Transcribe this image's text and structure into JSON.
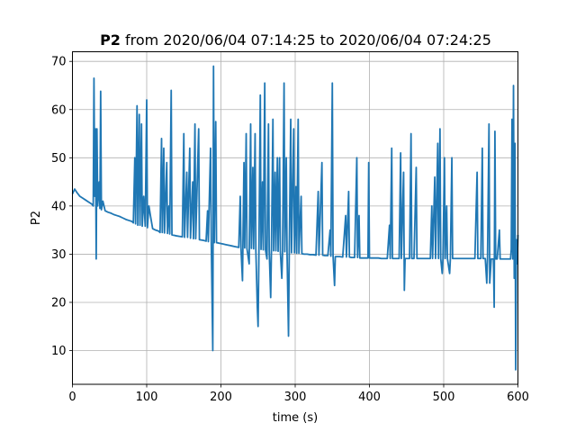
{
  "chart_data": {
    "type": "line",
    "title": {
      "variable": "P2",
      "rest": " from 2020/06/04 07:14:25 to 2020/06/04 07:24:25"
    },
    "xlabel": "time (s)",
    "ylabel": "P2",
    "xlim": [
      0,
      600
    ],
    "ylim": [
      3,
      72
    ],
    "x_ticks": [
      0,
      100,
      200,
      300,
      400,
      500,
      600
    ],
    "y_ticks": [
      10,
      20,
      30,
      40,
      50,
      60,
      70
    ],
    "grid": true,
    "series": [
      {
        "color": "#1f77b4",
        "points": [
          [
            0,
            42.5
          ],
          [
            3,
            43.5
          ],
          [
            6,
            42.8
          ],
          [
            10,
            42.0
          ],
          [
            14,
            41.6
          ],
          [
            18,
            41.2
          ],
          [
            22,
            40.8
          ],
          [
            26,
            40.4
          ],
          [
            28,
            40.0
          ],
          [
            29,
            66.5
          ],
          [
            30,
            42.0
          ],
          [
            31,
            56.0
          ],
          [
            32,
            29.0
          ],
          [
            33,
            56.0
          ],
          [
            34,
            40.0
          ],
          [
            36,
            45.0
          ],
          [
            37,
            39.5
          ],
          [
            38,
            63.8
          ],
          [
            39,
            39.2
          ],
          [
            41,
            41.0
          ],
          [
            44,
            39.0
          ],
          [
            48,
            38.7
          ],
          [
            52,
            38.5
          ],
          [
            56,
            38.2
          ],
          [
            60,
            38.0
          ],
          [
            64,
            37.8
          ],
          [
            68,
            37.5
          ],
          [
            72,
            37.2
          ],
          [
            76,
            37.0
          ],
          [
            80,
            36.8
          ],
          [
            82,
            36.5
          ],
          [
            84,
            50.0
          ],
          [
            85,
            36.3
          ],
          [
            87,
            60.8
          ],
          [
            88,
            36.0
          ],
          [
            90,
            59.0
          ],
          [
            91,
            36.0
          ],
          [
            93,
            57.0
          ],
          [
            94,
            35.8
          ],
          [
            96,
            42.0
          ],
          [
            98,
            35.8
          ],
          [
            100,
            62.0
          ],
          [
            101,
            35.5
          ],
          [
            103,
            40.0
          ],
          [
            105,
            38.0
          ],
          [
            108,
            35.3
          ],
          [
            112,
            35.0
          ],
          [
            116,
            34.8
          ],
          [
            118,
            34.5
          ],
          [
            120,
            54.0
          ],
          [
            121,
            34.5
          ],
          [
            123,
            52.0
          ],
          [
            124,
            34.4
          ],
          [
            127,
            49.0
          ],
          [
            128,
            34.3
          ],
          [
            130,
            40.0
          ],
          [
            131,
            34.2
          ],
          [
            133,
            64.0
          ],
          [
            134,
            34.0
          ],
          [
            137,
            33.9
          ],
          [
            140,
            33.8
          ],
          [
            144,
            33.7
          ],
          [
            148,
            33.6
          ],
          [
            150,
            55.0
          ],
          [
            151,
            33.5
          ],
          [
            154,
            47.0
          ],
          [
            155,
            33.5
          ],
          [
            158,
            52.0
          ],
          [
            159,
            33.3
          ],
          [
            162,
            45.0
          ],
          [
            163,
            33.2
          ],
          [
            165,
            57.0
          ],
          [
            166,
            33.2
          ],
          [
            170,
            56.0
          ],
          [
            171,
            33.0
          ],
          [
            175,
            32.9
          ],
          [
            178,
            32.8
          ],
          [
            180,
            32.7
          ],
          [
            182,
            39.0
          ],
          [
            183,
            32.6
          ],
          [
            186,
            52.0
          ],
          [
            187,
            32.5
          ],
          [
            189,
            10.0
          ],
          [
            190,
            69.0
          ],
          [
            191,
            32.4
          ],
          [
            193,
            57.5
          ],
          [
            194,
            32.4
          ],
          [
            197,
            32.3
          ],
          [
            200,
            32.2
          ],
          [
            203,
            32.1
          ],
          [
            206,
            32.0
          ],
          [
            209,
            31.9
          ],
          [
            212,
            31.8
          ],
          [
            215,
            31.7
          ],
          [
            218,
            31.6
          ],
          [
            221,
            31.5
          ],
          [
            224,
            31.4
          ],
          [
            226,
            42.0
          ],
          [
            227,
            31.3
          ],
          [
            229,
            24.5
          ],
          [
            231,
            49.0
          ],
          [
            232,
            31.3
          ],
          [
            234,
            55.0
          ],
          [
            235,
            31.2
          ],
          [
            238,
            28.0
          ],
          [
            240,
            57.0
          ],
          [
            241,
            31.2
          ],
          [
            243,
            48.0
          ],
          [
            244,
            31.1
          ],
          [
            246,
            55.0
          ],
          [
            247,
            31.0
          ],
          [
            249,
            19.0
          ],
          [
            250,
            15.0
          ],
          [
            251,
            28.0
          ],
          [
            253,
            63.0
          ],
          [
            254,
            31.0
          ],
          [
            256,
            45.0
          ],
          [
            257,
            30.9
          ],
          [
            259,
            65.5
          ],
          [
            260,
            30.9
          ],
          [
            262,
            29.0
          ],
          [
            264,
            57.0
          ],
          [
            265,
            30.8
          ],
          [
            267,
            21.0
          ],
          [
            268,
            30.8
          ],
          [
            270,
            58.0
          ],
          [
            271,
            30.7
          ],
          [
            273,
            47.0
          ],
          [
            274,
            30.7
          ],
          [
            276,
            50.0
          ],
          [
            277,
            30.6
          ],
          [
            279,
            50.0
          ],
          [
            280,
            30.6
          ],
          [
            282,
            25.0
          ],
          [
            283,
            30.5
          ],
          [
            285,
            65.5
          ],
          [
            286,
            30.5
          ],
          [
            288,
            50.0
          ],
          [
            289,
            30.4
          ],
          [
            291,
            13.0
          ],
          [
            292,
            30.4
          ],
          [
            294,
            58.0
          ],
          [
            295,
            30.3
          ],
          [
            298,
            56.0
          ],
          [
            299,
            30.3
          ],
          [
            301,
            44.0
          ],
          [
            302,
            30.2
          ],
          [
            304,
            58.0
          ],
          [
            305,
            30.2
          ],
          [
            308,
            42.0
          ],
          [
            309,
            30.1
          ],
          [
            312,
            30.0
          ],
          [
            316,
            30.0
          ],
          [
            320,
            29.9
          ],
          [
            324,
            29.9
          ],
          [
            328,
            29.8
          ],
          [
            331,
            43.0
          ],
          [
            332,
            29.8
          ],
          [
            336,
            49.0
          ],
          [
            337,
            29.8
          ],
          [
            340,
            29.7
          ],
          [
            344,
            29.7
          ],
          [
            347,
            35.0
          ],
          [
            348,
            29.6
          ],
          [
            350,
            65.5
          ],
          [
            351,
            29.6
          ],
          [
            353,
            23.5
          ],
          [
            354,
            29.5
          ],
          [
            357,
            29.5
          ],
          [
            360,
            29.5
          ],
          [
            364,
            29.4
          ],
          [
            368,
            38.0
          ],
          [
            369,
            29.4
          ],
          [
            372,
            43.0
          ],
          [
            373,
            29.4
          ],
          [
            376,
            29.3
          ],
          [
            380,
            29.3
          ],
          [
            383,
            50.0
          ],
          [
            384,
            29.3
          ],
          [
            386,
            38.0
          ],
          [
            387,
            29.2
          ],
          [
            391,
            29.2
          ],
          [
            395,
            29.2
          ],
          [
            398,
            29.2
          ],
          [
            399,
            49.0
          ],
          [
            400,
            29.2
          ],
          [
            404,
            29.2
          ],
          [
            408,
            29.2
          ],
          [
            412,
            29.2
          ],
          [
            416,
            29.1
          ],
          [
            420,
            29.1
          ],
          [
            424,
            29.1
          ],
          [
            427,
            36.0
          ],
          [
            428,
            29.1
          ],
          [
            430,
            52.0
          ],
          [
            431,
            29.1
          ],
          [
            434,
            29.1
          ],
          [
            437,
            29.1
          ],
          [
            440,
            29.1
          ],
          [
            442,
            51.0
          ],
          [
            443,
            29.1
          ],
          [
            446,
            47.0
          ],
          [
            447,
            22.5
          ],
          [
            448,
            29.1
          ],
          [
            451,
            29.1
          ],
          [
            454,
            29.1
          ],
          [
            456,
            55.0
          ],
          [
            457,
            29.1
          ],
          [
            460,
            29.1
          ],
          [
            463,
            48.0
          ],
          [
            464,
            29.1
          ],
          [
            467,
            29.1
          ],
          [
            470,
            29.1
          ],
          [
            474,
            29.1
          ],
          [
            478,
            29.1
          ],
          [
            482,
            29.1
          ],
          [
            484,
            40.0
          ],
          [
            485,
            29.1
          ],
          [
            488,
            46.0
          ],
          [
            489,
            29.1
          ],
          [
            492,
            53.0
          ],
          [
            493,
            29.1
          ],
          [
            495,
            56.0
          ],
          [
            496,
            29.1
          ],
          [
            498,
            26.0
          ],
          [
            499,
            29.1
          ],
          [
            501,
            50.0
          ],
          [
            502,
            29.1
          ],
          [
            504,
            40.0
          ],
          [
            505,
            29.1
          ],
          [
            508,
            26.0
          ],
          [
            509,
            29.1
          ],
          [
            511,
            50.0
          ],
          [
            512,
            29.1
          ],
          [
            515,
            29.1
          ],
          [
            518,
            29.1
          ],
          [
            522,
            29.1
          ],
          [
            526,
            29.1
          ],
          [
            530,
            29.1
          ],
          [
            534,
            29.1
          ],
          [
            538,
            29.1
          ],
          [
            542,
            29.1
          ],
          [
            545,
            47.0
          ],
          [
            546,
            29.1
          ],
          [
            548,
            29.1
          ],
          [
            550,
            29.1
          ],
          [
            552,
            52.0
          ],
          [
            553,
            29.1
          ],
          [
            556,
            29.1
          ],
          [
            558,
            24.0
          ],
          [
            559,
            29.1
          ],
          [
            561,
            57.0
          ],
          [
            562,
            24.0
          ],
          [
            564,
            29.0
          ],
          [
            567,
            29.0
          ],
          [
            568,
            19.0
          ],
          [
            569,
            55.5
          ],
          [
            570,
            29.0
          ],
          [
            572,
            29.0
          ],
          [
            575,
            35.0
          ],
          [
            576,
            29.0
          ],
          [
            578,
            29.0
          ],
          [
            581,
            29.0
          ],
          [
            584,
            29.0
          ],
          [
            586,
            29.0
          ],
          [
            588,
            29.0
          ],
          [
            590,
            29.0
          ],
          [
            591,
            31.0
          ],
          [
            592,
            58.0
          ],
          [
            593,
            29.0
          ],
          [
            594,
            65.0
          ],
          [
            595,
            25.0
          ],
          [
            596,
            53.0
          ],
          [
            597,
            6.0
          ],
          [
            598,
            33.0
          ],
          [
            599,
            28.0
          ],
          [
            600,
            34.0
          ]
        ]
      }
    ]
  }
}
